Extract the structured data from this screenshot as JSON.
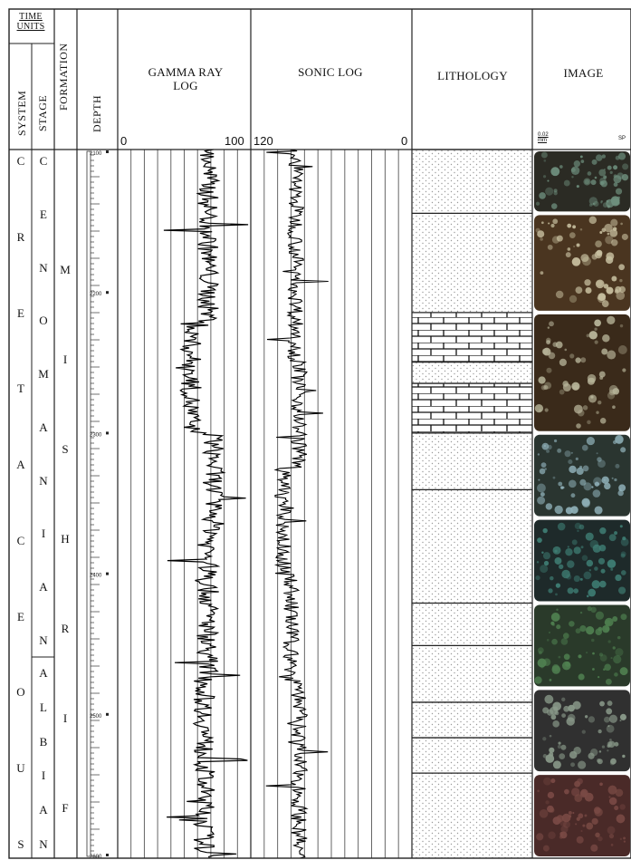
{
  "headers": {
    "time_units": "TIME UNITS",
    "system": "SYSTEM",
    "stage": "STAGE",
    "formation": "FORMATION",
    "depth": "DEPTH",
    "gamma": "GAMMA RAY LOG",
    "sonic": "SONIC LOG",
    "lithology": "LITHOLOGY",
    "image": "IMAGE"
  },
  "scales": {
    "gamma_min": "0",
    "gamma_max": "100",
    "sonic_left": "120",
    "sonic_right": "0",
    "image_left": "0.02 mm",
    "image_right": "SP"
  },
  "system_letters": [
    "C",
    "R",
    "E",
    "T",
    "A",
    "C",
    "E",
    "O",
    "U",
    "S"
  ],
  "stage_upper_letters": [
    "C",
    "E",
    "N",
    "O",
    "M",
    "A",
    "N",
    "I",
    "A",
    "N"
  ],
  "stage_lower_letters": [
    "A",
    "L",
    "B",
    "I",
    "A",
    "N"
  ],
  "formation_letters": [
    "M",
    "I",
    "S",
    "H",
    "R",
    "I",
    "F"
  ],
  "depth_labels": [
    "2100",
    "2200",
    "2300",
    "2400",
    "2500",
    "2600"
  ],
  "lithology_intervals": [
    {
      "from": 0.0,
      "to": 0.09,
      "type": "sandstone"
    },
    {
      "from": 0.09,
      "to": 0.23,
      "type": "sandstone"
    },
    {
      "from": 0.23,
      "to": 0.3,
      "type": "limestone"
    },
    {
      "from": 0.3,
      "to": 0.33,
      "type": "sandstone"
    },
    {
      "from": 0.33,
      "to": 0.4,
      "type": "limestone"
    },
    {
      "from": 0.4,
      "to": 0.48,
      "type": "sandstone"
    },
    {
      "from": 0.48,
      "to": 0.64,
      "type": "sandstone"
    },
    {
      "from": 0.64,
      "to": 0.7,
      "type": "sandstone"
    },
    {
      "from": 0.7,
      "to": 0.78,
      "type": "sandstone"
    },
    {
      "from": 0.78,
      "to": 0.83,
      "type": "sandstone"
    },
    {
      "from": 0.83,
      "to": 0.88,
      "type": "sandstone"
    },
    {
      "from": 0.88,
      "to": 1.0,
      "type": "sandstone"
    }
  ],
  "image_panels": [
    {
      "from": 0.0,
      "to": 0.09,
      "base": "#2b2b24",
      "spot": "#6e8f7d"
    },
    {
      "from": 0.09,
      "to": 0.23,
      "base": "#4a3520",
      "spot": "#c8c0a0"
    },
    {
      "from": 0.23,
      "to": 0.4,
      "base": "#3a2a1a",
      "spot": "#b8b59a"
    },
    {
      "from": 0.4,
      "to": 0.52,
      "base": "#2a3530",
      "spot": "#8fb0b8"
    },
    {
      "from": 0.52,
      "to": 0.64,
      "base": "#1e2a2a",
      "spot": "#3f7f75"
    },
    {
      "from": 0.64,
      "to": 0.76,
      "base": "#2a3a2a",
      "spot": "#4f8050"
    },
    {
      "from": 0.76,
      "to": 0.88,
      "base": "#303030",
      "spot": "#8a9a8a"
    },
    {
      "from": 0.88,
      "to": 1.0,
      "base": "#4a2a28",
      "spot": "#7a4a45"
    }
  ]
}
